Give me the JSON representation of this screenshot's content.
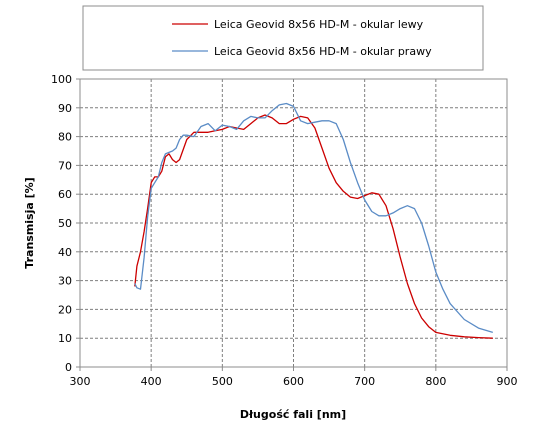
{
  "chart_data": {
    "type": "line",
    "xlabel": "Długość fali [nm]",
    "ylabel": "Transmisja [%]",
    "xlim": [
      300,
      900
    ],
    "ylim": [
      0,
      100
    ],
    "x_ticks": [
      300,
      400,
      500,
      600,
      700,
      800,
      900
    ],
    "y_ticks": [
      0,
      10,
      20,
      30,
      40,
      50,
      60,
      70,
      80,
      90,
      100
    ],
    "grid": true,
    "legend_position": "top",
    "series": [
      {
        "name": "Leica Geovid 8x56 HD-M - okular lewy",
        "color": "#cc0000",
        "x": [
          377,
          380,
          385,
          390,
          395,
          400,
          405,
          410,
          415,
          420,
          425,
          430,
          435,
          440,
          450,
          460,
          470,
          480,
          490,
          500,
          510,
          520,
          530,
          540,
          550,
          560,
          570,
          580,
          590,
          600,
          610,
          620,
          630,
          640,
          650,
          660,
          670,
          680,
          690,
          700,
          710,
          720,
          730,
          740,
          750,
          760,
          770,
          780,
          790,
          800,
          820,
          840,
          860,
          880
        ],
        "y": [
          28,
          35,
          40,
          47,
          55,
          64,
          66,
          66,
          68,
          73,
          74,
          72,
          71,
          72,
          79,
          81.5,
          81.5,
          81.5,
          82,
          82.5,
          83.5,
          83,
          82.5,
          84.5,
          86.5,
          87.5,
          86.5,
          84.5,
          84.5,
          86,
          87,
          86.5,
          83,
          76,
          69,
          64,
          61,
          59,
          58.5,
          59.5,
          60.5,
          60,
          56,
          48,
          38,
          29,
          22,
          17,
          14,
          12,
          11,
          10.5,
          10.2,
          10
        ]
      },
      {
        "name": "Leica Geovid 8x56 HD-M - okular prawy",
        "color": "#5b8cc6",
        "x": [
          377,
          380,
          385,
          390,
          395,
          400,
          405,
          410,
          415,
          420,
          425,
          430,
          435,
          440,
          445,
          450,
          460,
          470,
          480,
          490,
          500,
          510,
          520,
          530,
          540,
          550,
          560,
          570,
          580,
          590,
          600,
          610,
          620,
          630,
          640,
          650,
          660,
          670,
          680,
          690,
          700,
          710,
          720,
          730,
          740,
          750,
          760,
          770,
          780,
          790,
          800,
          810,
          820,
          840,
          860,
          880
        ],
        "y": [
          29,
          27.5,
          27,
          38,
          52,
          62,
          64,
          66,
          71,
          74,
          74.5,
          75,
          76,
          79,
          80.5,
          80.5,
          80,
          83.5,
          84.5,
          82,
          84,
          83.5,
          82.5,
          85.5,
          87,
          86.5,
          86.5,
          89,
          91,
          91.5,
          90.5,
          85.5,
          84.5,
          85,
          85.5,
          85.5,
          84.5,
          79,
          71,
          64,
          58,
          54,
          52.5,
          52.5,
          53.5,
          55,
          56,
          55,
          50,
          42,
          33,
          27,
          22,
          16.5,
          13.5,
          12
        ]
      }
    ]
  }
}
